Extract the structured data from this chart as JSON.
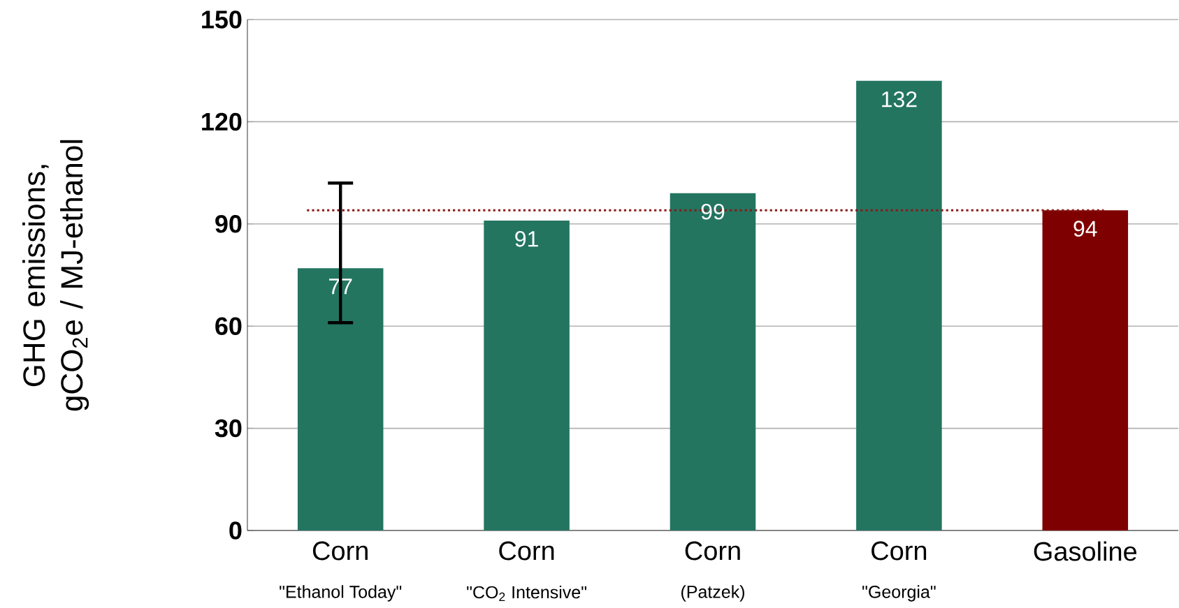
{
  "chart_data": {
    "type": "bar",
    "ylabel": "GHG emissions, gCO$_{2}$e / MJ-ethanol",
    "categories": [
      "Corn",
      "Corn",
      "Corn",
      "Corn",
      "Gasoline"
    ],
    "values": [
      77,
      91,
      99,
      132,
      94
    ],
    "colors": [
      "#237560",
      "#237560",
      "#237560",
      "#237560",
      "#7f0000"
    ],
    "errors": [
      [
        61,
        102
      ],
      null,
      null,
      null,
      null
    ],
    "data_labels": true,
    "ylim": [
      0,
      150
    ],
    "yticks": [
      0,
      30,
      60,
      90,
      120,
      150
    ],
    "grid": "y",
    "ref_lines": [
      {
        "axis": "y",
        "value": 94,
        "color": "#8b1a1a",
        "line_style": "dotted"
      }
    ],
    "annotations": [
      "\"Ethanol Today\"",
      "\"CO$_{2}$ Intensive\"",
      "(Patzek)",
      "\"Georgia\""
    ]
  }
}
